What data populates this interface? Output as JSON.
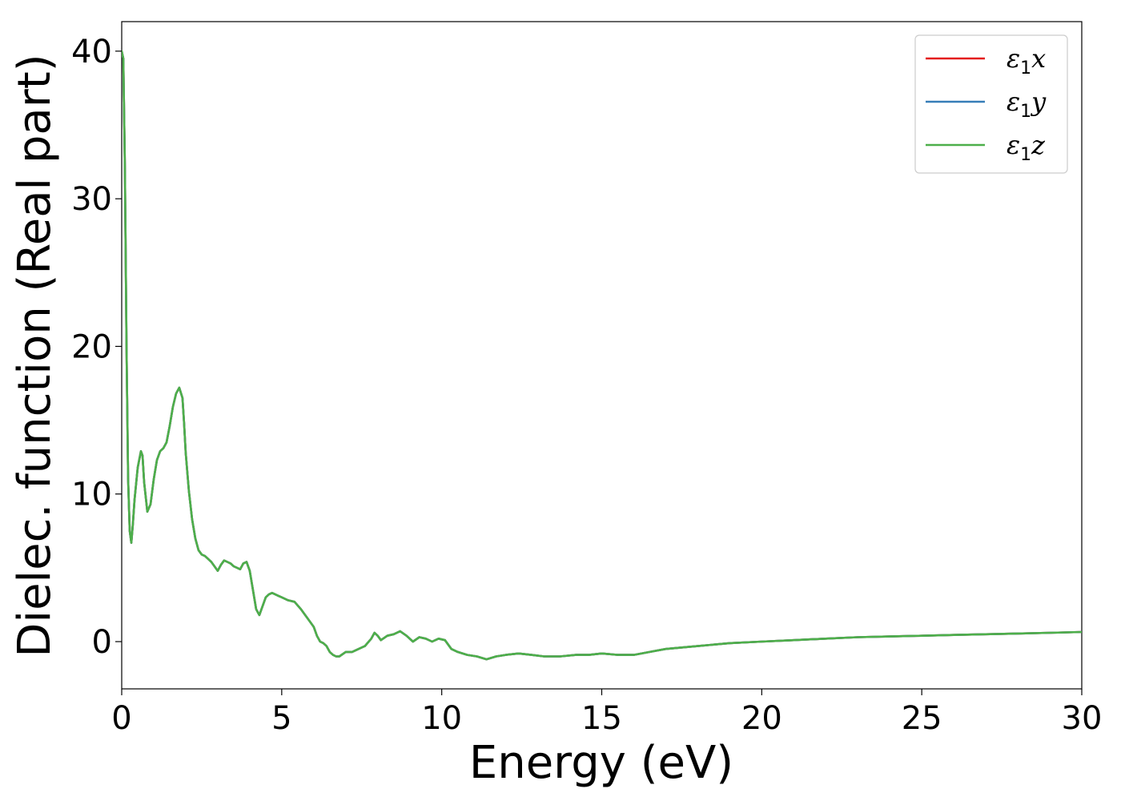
{
  "chart_data": {
    "type": "line",
    "xlabel": "Energy (eV)",
    "ylabel": "Dielec. function (Real part)",
    "xlim": [
      0,
      30
    ],
    "ylim": [
      -3.2,
      42
    ],
    "xticks": [
      0,
      5,
      10,
      15,
      20,
      25,
      30
    ],
    "yticks": [
      0,
      10,
      20,
      30,
      40
    ],
    "grid": false,
    "legend_position": "top-right",
    "series": [
      {
        "name": "ε₁x",
        "legend_base": "ε",
        "legend_sub": "1",
        "legend_suffix": "x",
        "color": "#e41a1c"
      },
      {
        "name": "ε₁y",
        "legend_base": "ε",
        "legend_sub": "1",
        "legend_suffix": "y",
        "color": "#377eb8"
      },
      {
        "name": "ε₁z",
        "legend_base": "ε",
        "legend_sub": "1",
        "legend_suffix": "z",
        "color": "#4daf4a"
      }
    ],
    "x": [
      0.0,
      0.05,
      0.1,
      0.15,
      0.2,
      0.25,
      0.3,
      0.35,
      0.4,
      0.5,
      0.6,
      0.65,
      0.7,
      0.8,
      0.9,
      1.0,
      1.1,
      1.2,
      1.3,
      1.4,
      1.5,
      1.6,
      1.7,
      1.8,
      1.9,
      1.95,
      2.0,
      2.1,
      2.2,
      2.3,
      2.4,
      2.5,
      2.6,
      2.8,
      3.0,
      3.1,
      3.2,
      3.3,
      3.4,
      3.5,
      3.7,
      3.8,
      3.9,
      4.0,
      4.1,
      4.2,
      4.3,
      4.4,
      4.5,
      4.6,
      4.7,
      4.8,
      4.9,
      5.0,
      5.2,
      5.4,
      5.6,
      5.8,
      6.0,
      6.1,
      6.2,
      6.3,
      6.4,
      6.5,
      6.6,
      6.7,
      6.8,
      7.0,
      7.2,
      7.4,
      7.6,
      7.8,
      7.9,
      8.0,
      8.1,
      8.3,
      8.5,
      8.7,
      8.9,
      9.1,
      9.3,
      9.5,
      9.7,
      9.9,
      10.1,
      10.3,
      10.5,
      10.8,
      11.1,
      11.4,
      11.7,
      12.0,
      12.4,
      12.8,
      13.2,
      13.7,
      14.2,
      14.6,
      15.0,
      15.5,
      16.0,
      16.5,
      17.0,
      18.0,
      19.0,
      20.0,
      21.0,
      22.0,
      23.0,
      24.0,
      25.0,
      26.0,
      27.0,
      28.0,
      29.0,
      30.0
    ],
    "y": [
      40.0,
      39.5,
      32.0,
      20.0,
      11.0,
      7.5,
      6.7,
      8.0,
      9.6,
      11.8,
      12.9,
      12.6,
      10.8,
      8.8,
      9.3,
      11.0,
      12.3,
      12.9,
      13.1,
      13.5,
      14.6,
      15.9,
      16.8,
      17.2,
      16.5,
      14.8,
      12.8,
      10.2,
      8.3,
      7.0,
      6.2,
      5.9,
      5.8,
      5.4,
      4.8,
      5.2,
      5.5,
      5.4,
      5.3,
      5.1,
      4.9,
      5.3,
      5.4,
      4.8,
      3.5,
      2.2,
      1.8,
      2.4,
      3.0,
      3.2,
      3.3,
      3.2,
      3.1,
      3.0,
      2.8,
      2.7,
      2.2,
      1.6,
      1.0,
      0.4,
      0.0,
      -0.1,
      -0.3,
      -0.7,
      -0.9,
      -1.0,
      -1.0,
      -0.7,
      -0.7,
      -0.5,
      -0.3,
      0.2,
      0.6,
      0.4,
      0.1,
      0.4,
      0.5,
      0.7,
      0.4,
      0.0,
      0.3,
      0.2,
      0.0,
      0.2,
      0.1,
      -0.5,
      -0.7,
      -0.9,
      -1.0,
      -1.2,
      -1.0,
      -0.9,
      -0.8,
      -0.9,
      -1.0,
      -1.0,
      -0.9,
      -0.9,
      -0.8,
      -0.9,
      -0.9,
      -0.7,
      -0.5,
      -0.3,
      -0.1,
      0.0,
      0.1,
      0.2,
      0.3,
      0.35,
      0.4,
      0.45,
      0.5,
      0.55,
      0.6,
      0.65
    ]
  }
}
